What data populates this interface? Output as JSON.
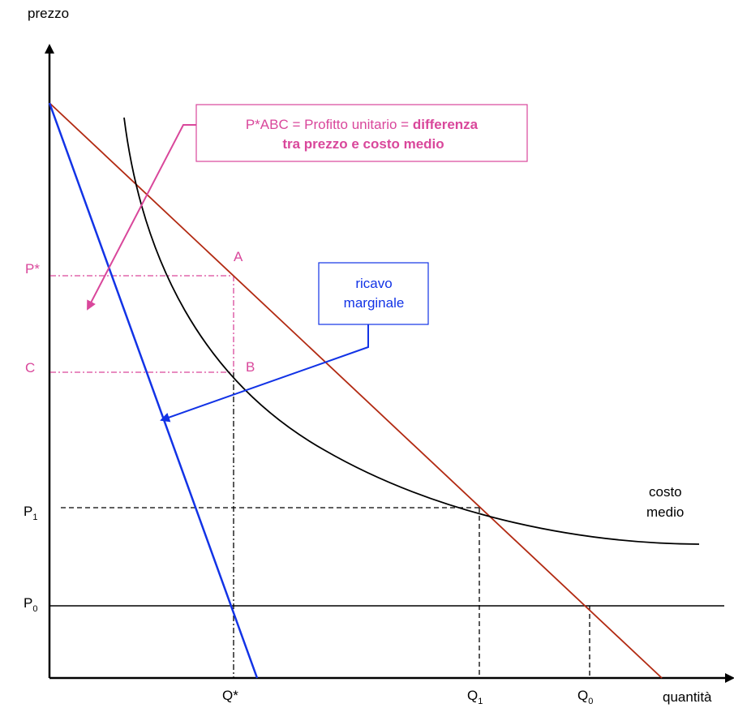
{
  "axes": {
    "y_label": "prezzo",
    "x_label": "quantità"
  },
  "y_ticks": {
    "p_star": "P*",
    "c": "C",
    "p1": "P",
    "p1_sub": "1",
    "p0": "P",
    "p0_sub": "0"
  },
  "x_ticks": {
    "q_star": "Q*",
    "q1": "Q",
    "q1_sub": "1",
    "q0": "Q",
    "q0_sub": "0"
  },
  "points": {
    "a": "A",
    "b": "B"
  },
  "curves": {
    "average_cost_line1": "costo",
    "average_cost_line2": "medio"
  },
  "callouts": {
    "profit_line1_normal": "P*ABC = Profitto unitario = ",
    "profit_line1_bold": "differenza",
    "profit_line2_bold": "tra prezzo e costo medio",
    "mr_line1": "ricavo",
    "mr_line2": "marginale"
  },
  "colors": {
    "demand": "#b22a12",
    "marginal_revenue": "#1233e6",
    "average_cost": "#000000",
    "profit_annotation": "#d9479b"
  }
}
